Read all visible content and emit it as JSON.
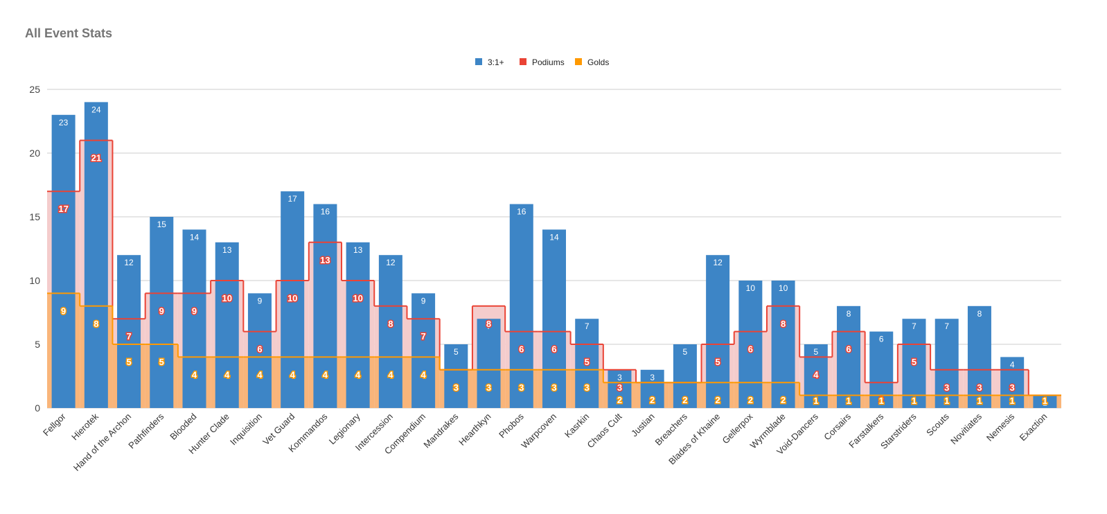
{
  "chart_data": {
    "type": "bar-step",
    "title": "All Event Stats",
    "categories": [
      "Fellgor",
      "Hierotek",
      "Hand of the Archon",
      "Pathfinders",
      "Blooded",
      "Hunter Clade",
      "Inquisition",
      "Vet Guard",
      "Kommandos",
      "Legionary",
      "Intercession",
      "Compendium",
      "Mandrakes",
      "Hearthkyn",
      "Phobos",
      "Warpcoven",
      "Kasrkin",
      "Chaos Cult",
      "Justian",
      "Breachers",
      "Blades of Khaine",
      "Gellerpox",
      "Wyrmblade",
      "Void-Dancers",
      "Corsairs",
      "Farstalkers",
      "Starstriders",
      "Scouts",
      "Novitiates",
      "Nemesis",
      "Exaction"
    ],
    "series": [
      {
        "name": "3:1+",
        "color": "#3d85c6",
        "values": [
          23,
          24,
          12,
          15,
          14,
          13,
          9,
          17,
          16,
          13,
          12,
          9,
          5,
          7,
          16,
          14,
          7,
          3,
          3,
          5,
          12,
          10,
          10,
          5,
          8,
          6,
          7,
          7,
          8,
          4,
          1
        ]
      },
      {
        "name": "Podiums",
        "color": "#ea4335",
        "values": [
          17,
          21,
          7,
          9,
          9,
          10,
          6,
          10,
          13,
          10,
          8,
          7,
          3,
          8,
          6,
          6,
          5,
          3,
          2,
          2,
          5,
          6,
          8,
          4,
          6,
          2,
          5,
          3,
          3,
          3,
          1
        ]
      },
      {
        "name": "Golds",
        "color": "#ff9900",
        "values": [
          9,
          8,
          5,
          5,
          4,
          4,
          4,
          4,
          4,
          4,
          4,
          4,
          3,
          3,
          3,
          3,
          3,
          2,
          2,
          2,
          2,
          2,
          2,
          1,
          1,
          1,
          1,
          1,
          1,
          1,
          1
        ]
      }
    ],
    "ylim": [
      0,
      25
    ],
    "yticks": [
      0,
      5,
      10,
      15,
      20,
      25
    ],
    "grid": true
  }
}
